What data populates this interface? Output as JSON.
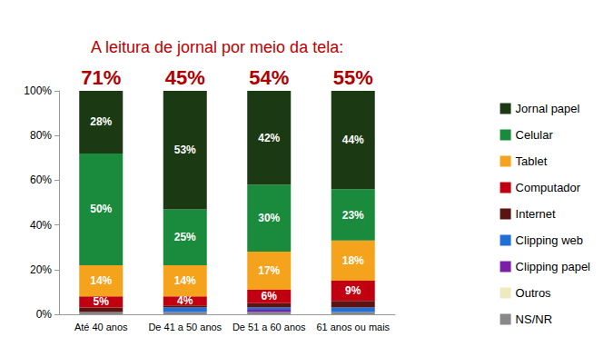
{
  "chart_data": {
    "type": "bar",
    "title": "A leitura de jornal por meio da tela:",
    "stacked": true,
    "data_labels": true,
    "grid": false,
    "legend": "right",
    "categories": [
      "Até 40 anos",
      "De 41 a 50 anos",
      "De 51 a 60 anos",
      "61 anos ou mais"
    ],
    "annotations": [
      {
        "category": "Até 40 anos",
        "text": "71%"
      },
      {
        "category": "De 41 a 50 anos",
        "text": "45%"
      },
      {
        "category": "De 51 a 60 anos",
        "text": "54%"
      },
      {
        "category": "61 anos ou mais",
        "text": "55%"
      }
    ],
    "ylim": [
      0,
      100
    ],
    "yticks": [
      {
        "value": 0,
        "label": "0%"
      },
      {
        "value": 20,
        "label": "20%"
      },
      {
        "value": 40,
        "label": "40%"
      },
      {
        "value": 60,
        "label": "60%"
      },
      {
        "value": 80,
        "label": "80%"
      },
      {
        "value": 100,
        "label": "100%"
      }
    ],
    "series": [
      {
        "name": "Jornal papel",
        "color": "#1b3a14",
        "values": [
          28,
          53,
          42,
          44
        ],
        "value_labels": [
          "28%",
          "53%",
          "42%",
          "44%"
        ]
      },
      {
        "name": "Celular",
        "color": "#1a8a3c",
        "values": [
          50,
          25,
          30,
          23
        ],
        "value_labels": [
          "50%",
          "25%",
          "30%",
          "23%"
        ]
      },
      {
        "name": "Tablet",
        "color": "#f5a31c",
        "values": [
          14,
          14,
          17,
          18
        ],
        "value_labels": [
          "14%",
          "14%",
          "17%",
          "18%"
        ]
      },
      {
        "name": "Computador",
        "color": "#c00010",
        "values": [
          5,
          4,
          6,
          9
        ],
        "value_labels": [
          "5%",
          "4%",
          "6%",
          "9%"
        ]
      },
      {
        "name": "Internet",
        "color": "#5a1414",
        "values": [
          2,
          1,
          2,
          3
        ],
        "value_labels": [
          null,
          null,
          null,
          null
        ]
      },
      {
        "name": "Clipping web",
        "color": "#1f6fd6",
        "values": [
          0,
          2,
          1,
          2
        ],
        "value_labels": [
          null,
          null,
          null,
          null
        ]
      },
      {
        "name": "Clipping papel",
        "color": "#7a1fa8",
        "values": [
          0,
          0,
          1,
          0
        ],
        "value_labels": [
          null,
          null,
          null,
          null
        ]
      },
      {
        "name": "Outros",
        "color": "#efe9c2",
        "values": [
          0,
          0,
          0,
          0
        ],
        "value_labels": [
          null,
          null,
          null,
          null
        ]
      },
      {
        "name": "NS/NR",
        "color": "#888888",
        "values": [
          1,
          1,
          1,
          1
        ],
        "value_labels": [
          null,
          null,
          null,
          null
        ]
      }
    ]
  }
}
